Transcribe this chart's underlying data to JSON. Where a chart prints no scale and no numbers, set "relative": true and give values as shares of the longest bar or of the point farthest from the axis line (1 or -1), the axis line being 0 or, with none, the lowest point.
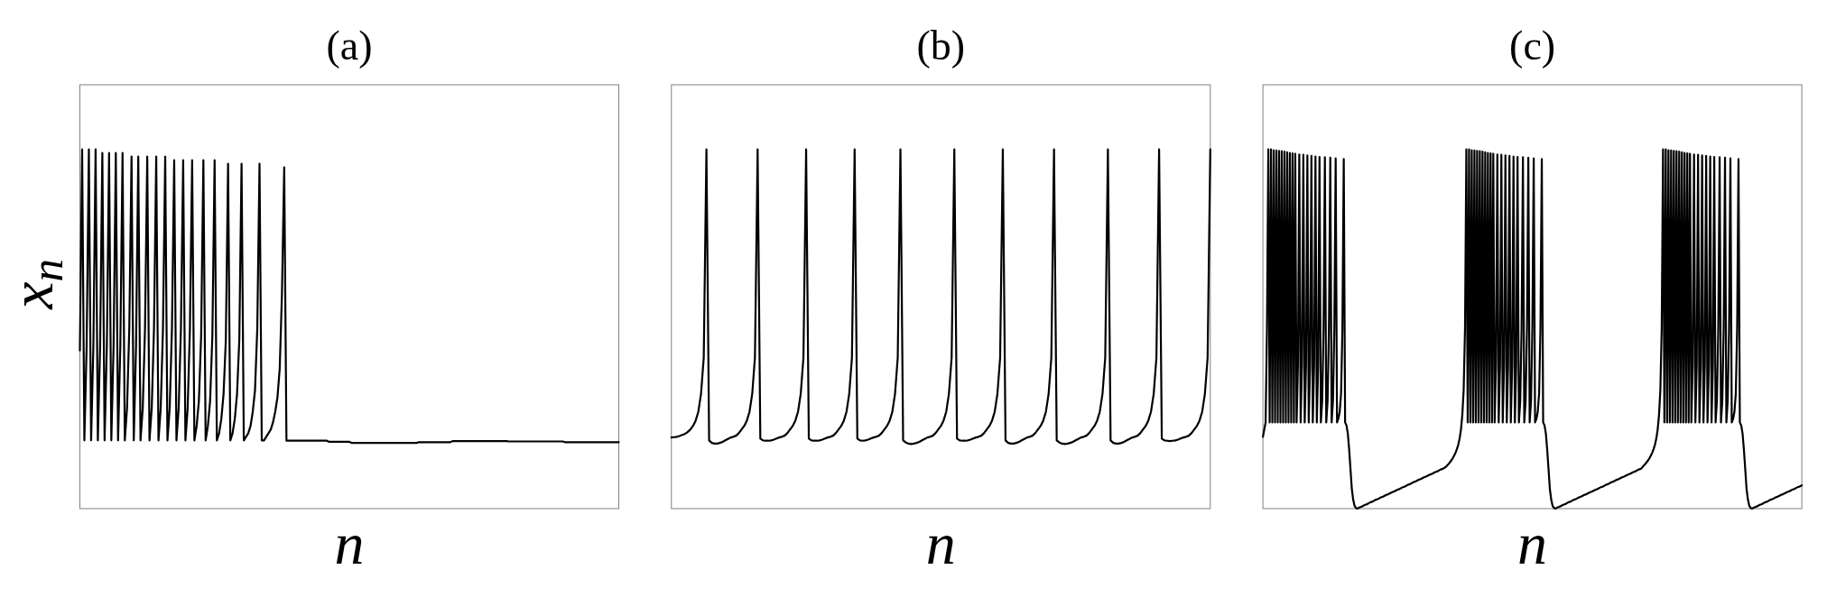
{
  "chart_data": [
    {
      "type": "line",
      "title": "(a)",
      "xlabel": "n",
      "ylabel": "x$_{n}$",
      "relative": true,
      "color": "#000000",
      "categories": [
        null,
        null,
        null,
        null,
        null,
        null,
        null,
        null,
        null,
        null,
        null,
        null,
        null,
        null,
        null,
        null,
        null,
        null,
        null,
        null,
        null,
        null,
        null,
        null,
        null,
        null,
        null,
        null,
        null,
        null,
        null,
        null,
        null,
        null,
        null,
        null,
        null,
        null,
        null,
        null,
        null,
        null,
        null,
        null,
        null,
        null,
        null,
        null,
        null,
        null,
        null,
        null,
        null,
        null,
        null,
        null,
        null,
        null,
        null,
        null,
        null,
        null,
        null,
        null,
        null,
        null,
        null,
        null,
        null,
        null,
        null,
        null,
        null,
        null,
        null,
        null,
        null,
        null,
        null,
        null,
        null,
        null,
        null,
        null,
        null,
        null,
        null,
        null,
        null,
        null,
        null,
        null,
        null,
        null,
        null,
        null,
        null,
        null,
        null,
        null,
        null,
        null,
        null,
        null,
        null,
        null,
        null,
        null,
        null,
        null,
        null,
        null,
        null,
        null,
        null,
        null,
        null,
        null,
        null,
        null,
        null,
        null,
        null,
        null,
        null,
        null,
        null,
        null,
        null,
        null,
        null,
        null,
        null,
        null,
        null,
        null,
        null,
        null,
        null,
        null,
        null,
        null,
        null,
        null,
        null,
        null,
        null,
        null,
        null,
        null,
        null,
        null,
        null,
        null,
        null,
        null,
        null,
        null,
        null,
        null,
        null,
        null,
        null,
        null,
        null,
        null,
        null,
        null,
        null,
        null,
        null,
        null,
        null,
        null,
        null,
        null,
        null,
        null,
        null,
        null,
        null,
        null,
        null,
        null,
        null,
        null,
        null,
        null,
        null,
        null,
        null,
        null,
        null,
        null,
        null,
        null,
        null,
        null,
        null,
        null,
        null,
        null,
        null,
        null,
        null,
        null,
        null,
        null,
        null,
        null,
        null,
        null,
        null,
        null,
        null,
        null,
        null,
        null,
        null,
        null,
        null,
        null,
        null,
        null,
        null,
        null,
        null,
        null,
        null,
        null,
        null,
        null,
        null,
        null,
        null,
        null,
        null,
        null,
        null,
        null,
        null
      ],
      "values": [
        0.44,
        1,
        0.19,
        0.45,
        1,
        0.19,
        0.45,
        1,
        0.19,
        0.45,
        0.99,
        0.19,
        0.45,
        0.99,
        0.19,
        0.45,
        0.99,
        0.19,
        0.45,
        0.99,
        0.19,
        0.28,
        0.5,
        0.98,
        0.19,
        0.45,
        0.98,
        0.19,
        0.28,
        0.5,
        0.98,
        0.19,
        0.28,
        0.5,
        0.98,
        0.19,
        0.28,
        0.5,
        0.98,
        0.19,
        0.28,
        0.5,
        0.97,
        0.19,
        0.28,
        0.5,
        0.97,
        0.19,
        0.28,
        0.5,
        0.97,
        0.19,
        0.23,
        0.3,
        0.48,
        0.97,
        0.19,
        0.23,
        0.3,
        0.48,
        0.97,
        0.19,
        0.21,
        0.25,
        0.32,
        0.47,
        0.96,
        0.19,
        0.21,
        0.25,
        0.32,
        0.47,
        0.96,
        0.19,
        0.2,
        0.21,
        0.23,
        0.27,
        0.33,
        0.5,
        0.96,
        0.19,
        0.19,
        0.2,
        0.21,
        0.22,
        0.24,
        0.27,
        0.31,
        0.39,
        0.6,
        0.95,
        0.189,
        0.189,
        0.189,
        0.189,
        0.189,
        0.189,
        0.189,
        0.189,
        0.189,
        0.189,
        0.189,
        0.189,
        0.189,
        0.189,
        0.189,
        0.189,
        0.189,
        0.189,
        0.189,
        0.186,
        0.186,
        0.186,
        0.186,
        0.186,
        0.186,
        0.186,
        0.186,
        0.186,
        0.186,
        0.183,
        0.183,
        0.183,
        0.183,
        0.183,
        0.183,
        0.183,
        0.183,
        0.183,
        0.183,
        0.183,
        0.183,
        0.183,
        0.183,
        0.183,
        0.183,
        0.183,
        0.183,
        0.183,
        0.183,
        0.183,
        0.183,
        0.183,
        0.183,
        0.183,
        0.183,
        0.183,
        0.183,
        0.183,
        0.183,
        0.185,
        0.185,
        0.185,
        0.185,
        0.185,
        0.185,
        0.185,
        0.185,
        0.185,
        0.185,
        0.185,
        0.185,
        0.185,
        0.185,
        0.185,
        0.188,
        0.188,
        0.188,
        0.188,
        0.188,
        0.188,
        0.188,
        0.188,
        0.188,
        0.188,
        0.188,
        0.188,
        0.188,
        0.188,
        0.188,
        0.188,
        0.188,
        0.188,
        0.188,
        0.188,
        0.188,
        0.188,
        0.188,
        0.188,
        0.188,
        0.187,
        0.187,
        0.187,
        0.187,
        0.187,
        0.187,
        0.187,
        0.187,
        0.187,
        0.187,
        0.187,
        0.187,
        0.187,
        0.187,
        0.187,
        0.187,
        0.187,
        0.187,
        0.187,
        0.187,
        0.187,
        0.187,
        0.187,
        0.187,
        0.187,
        0.185,
        0.185,
        0.185,
        0.185,
        0.185,
        0.185,
        0.185,
        0.185,
        0.185,
        0.185,
        0.185,
        0.185,
        0.185,
        0.185,
        0.185,
        0.185,
        0.185,
        0.185,
        0.185,
        0.185,
        0.185,
        0.185,
        0.185,
        0.185,
        0.185
      ]
    },
    {
      "type": "line",
      "title": "(b)",
      "xlabel": "n",
      "relative": true,
      "color": "#000000",
      "categories": [
        null,
        null,
        null,
        null,
        null,
        null,
        null,
        null,
        null,
        null,
        null,
        null,
        null,
        null,
        null,
        null,
        null,
        null,
        null,
        null,
        null,
        null,
        null,
        null,
        null,
        null,
        null,
        null,
        null,
        null,
        null,
        null,
        null,
        null,
        null,
        null,
        null,
        null,
        null,
        null,
        null,
        null,
        null,
        null,
        null,
        null,
        null,
        null,
        null,
        null,
        null,
        null,
        null,
        null,
        null,
        null,
        null,
        null,
        null,
        null,
        null,
        null,
        null,
        null,
        null,
        null,
        null,
        null,
        null,
        null,
        null,
        null,
        null,
        null,
        null,
        null,
        null,
        null,
        null,
        null,
        null,
        null,
        null,
        null,
        null,
        null,
        null,
        null,
        null,
        null,
        null,
        null,
        null,
        null,
        null,
        null,
        null,
        null,
        null,
        null,
        null,
        null,
        null,
        null,
        null,
        null,
        null,
        null,
        null,
        null,
        null,
        null,
        null,
        null,
        null,
        null,
        null,
        null,
        null,
        null,
        null,
        null,
        null,
        null,
        null,
        null,
        null,
        null,
        null,
        null,
        null,
        null,
        null,
        null,
        null,
        null,
        null,
        null,
        null,
        null,
        null,
        null,
        null,
        null,
        null,
        null,
        null,
        null,
        null,
        null,
        null,
        null,
        null,
        null,
        null,
        null,
        null,
        null,
        null,
        null,
        null,
        null,
        null,
        null,
        null,
        null,
        null,
        null,
        null,
        null,
        null,
        null,
        null,
        null,
        null,
        null,
        null,
        null,
        null,
        null,
        null,
        null,
        null,
        null,
        null,
        null,
        null,
        null,
        null,
        null,
        null,
        null,
        null,
        null,
        null,
        null,
        null,
        null,
        null,
        null,
        null
      ],
      "values": [
        0.198,
        0.199,
        0.2,
        0.202,
        0.205,
        0.208,
        0.213,
        0.22,
        0.23,
        0.245,
        0.27,
        0.32,
        0.42,
        1,
        0.19,
        0.183,
        0.181,
        0.181,
        0.183,
        0.186,
        0.19,
        0.194,
        0.198,
        0.2,
        0.203,
        0.21,
        0.22,
        0.23,
        0.245,
        0.27,
        0.32,
        0.42,
        1,
        0.195,
        0.19,
        0.189,
        0.189,
        0.19,
        0.192,
        0.195,
        0.198,
        0.2,
        0.203,
        0.21,
        0.22,
        0.23,
        0.245,
        0.27,
        0.32,
        0.42,
        1,
        0.195,
        0.19,
        0.189,
        0.189,
        0.19,
        0.192,
        0.195,
        0.198,
        0.2,
        0.203,
        0.21,
        0.22,
        0.23,
        0.245,
        0.27,
        0.32,
        0.42,
        1,
        0.195,
        0.19,
        0.189,
        0.19,
        0.192,
        0.195,
        0.198,
        0.2,
        0.203,
        0.21,
        0.22,
        0.23,
        0.245,
        0.27,
        0.32,
        0.42,
        1,
        0.19,
        0.184,
        0.181,
        0.18,
        0.181,
        0.183,
        0.186,
        0.19,
        0.194,
        0.198,
        0.2,
        0.203,
        0.21,
        0.22,
        0.23,
        0.245,
        0.27,
        0.32,
        0.42,
        1,
        0.195,
        0.19,
        0.189,
        0.189,
        0.19,
        0.192,
        0.195,
        0.198,
        0.2,
        0.203,
        0.21,
        0.22,
        0.23,
        0.245,
        0.27,
        0.32,
        0.42,
        1,
        0.19,
        0.183,
        0.181,
        0.181,
        0.183,
        0.186,
        0.19,
        0.194,
        0.198,
        0.2,
        0.203,
        0.21,
        0.22,
        0.23,
        0.245,
        0.27,
        0.32,
        0.42,
        1,
        0.19,
        0.184,
        0.181,
        0.18,
        0.181,
        0.183,
        0.186,
        0.19,
        0.194,
        0.198,
        0.2,
        0.203,
        0.21,
        0.22,
        0.23,
        0.245,
        0.27,
        0.32,
        0.42,
        1,
        0.19,
        0.183,
        0.181,
        0.181,
        0.183,
        0.186,
        0.19,
        0.194,
        0.198,
        0.2,
        0.203,
        0.21,
        0.22,
        0.23,
        0.245,
        0.27,
        0.32,
        0.42,
        1,
        0.195,
        0.19,
        0.189,
        0.188,
        0.189,
        0.19,
        0.192,
        0.195,
        0.198,
        0.2,
        0.203,
        0.21,
        0.22,
        0.23,
        0.245,
        0.27,
        0.32,
        0.42,
        1
      ]
    },
    {
      "type": "line",
      "title": "(c)",
      "xlabel": "n",
      "relative": true,
      "color": "#000000",
      "categories": [
        null,
        null,
        null,
        null,
        null,
        null,
        null,
        null,
        null,
        null,
        null,
        null,
        null,
        null,
        null,
        null,
        null,
        null,
        null,
        null,
        null,
        null,
        null,
        null,
        null,
        null,
        null,
        null,
        null,
        null,
        null,
        null,
        null,
        null,
        null,
        null,
        null,
        null,
        null,
        null,
        null,
        null,
        null,
        null,
        null,
        null,
        null,
        null,
        null,
        null,
        null,
        null,
        null,
        null,
        null,
        null,
        null,
        null,
        null,
        null,
        null,
        null,
        null,
        null,
        null,
        null,
        null,
        null,
        null,
        null,
        null,
        null,
        null,
        null,
        null,
        null,
        null,
        null,
        null,
        null,
        null,
        null,
        null,
        null,
        null,
        null,
        null,
        null,
        null,
        null,
        null,
        null,
        null,
        null,
        null,
        null,
        null,
        null,
        null,
        null,
        null,
        null,
        null,
        null,
        null,
        null,
        null,
        null,
        null,
        null,
        null,
        null,
        null,
        null,
        null,
        null,
        null,
        null,
        null,
        null,
        null,
        null,
        null,
        null,
        null,
        null,
        null,
        null,
        null,
        null,
        null,
        null,
        null,
        null,
        null,
        null,
        null,
        null,
        null,
        null,
        null,
        null,
        null,
        null,
        null,
        null,
        null,
        null,
        null,
        null,
        null,
        null,
        null,
        null,
        null,
        null,
        null,
        null,
        null,
        null,
        null,
        null,
        null,
        null,
        null,
        null,
        null,
        null,
        null,
        null,
        null,
        null,
        null,
        null,
        null,
        null,
        null,
        null,
        null,
        null,
        null,
        null,
        null,
        null,
        null,
        null,
        null,
        null,
        null,
        null,
        null,
        null,
        null,
        null,
        null,
        null,
        null,
        null,
        null,
        null,
        null,
        null,
        null,
        null,
        null,
        null,
        null,
        null,
        null,
        null,
        null,
        null,
        null,
        null,
        null,
        null,
        null,
        null,
        null,
        null,
        null,
        null,
        null,
        null,
        null,
        null,
        null,
        null,
        null,
        null,
        null,
        null,
        null,
        null,
        null,
        null,
        null,
        null,
        null,
        null,
        null,
        null,
        null,
        null,
        null,
        null,
        null,
        null,
        null,
        null,
        null,
        null,
        null,
        null,
        null,
        null,
        null,
        null,
        null,
        null,
        null,
        null,
        null,
        null,
        null,
        null,
        null,
        null,
        null,
        null,
        null,
        null,
        null,
        null,
        null,
        null,
        null,
        null,
        null,
        null,
        null,
        null,
        null,
        null,
        null,
        null,
        null,
        null,
        null,
        null,
        null,
        null,
        null,
        null,
        null,
        null,
        null,
        null,
        null,
        null,
        null,
        null,
        null,
        null,
        null,
        null,
        null,
        null,
        null,
        null,
        null,
        null,
        null,
        null,
        null,
        null,
        null,
        null,
        null,
        null,
        null,
        null,
        null,
        null,
        null,
        null,
        null,
        null,
        null,
        null,
        null,
        null,
        null,
        null,
        null,
        null,
        null,
        null,
        null,
        null,
        null,
        null,
        null,
        null,
        null,
        null,
        null,
        null,
        null,
        null,
        null,
        null,
        null,
        null,
        null,
        null,
        null,
        null,
        null,
        null,
        null,
        null,
        null,
        null,
        null,
        null,
        null,
        null,
        null,
        null,
        null,
        null,
        null,
        null,
        null,
        null,
        null,
        null,
        null,
        null,
        null,
        null,
        null,
        null,
        null,
        null,
        null,
        null,
        null,
        null,
        null,
        null,
        null,
        null,
        null,
        null,
        null,
        null,
        null,
        null,
        null
      ],
      "values": [
        0.2,
        0.22,
        0.24,
        0.5,
        1,
        0.24,
        1,
        0.24,
        0.998,
        0.24,
        0.997,
        0.24,
        0.996,
        0.24,
        0.995,
        0.24,
        0.994,
        0.24,
        0.992,
        0.24,
        0.99,
        0.24,
        0.989,
        0.24,
        0.988,
        0.24,
        0.4,
        0.986,
        0.24,
        0.4,
        0.985,
        0.24,
        0.4,
        0.983,
        0.24,
        0.4,
        0.982,
        0.24,
        0.4,
        0.98,
        0.24,
        0.4,
        0.979,
        0.24,
        0.3,
        0.5,
        0.978,
        0.24,
        0.3,
        0.5,
        0.977,
        0.24,
        0.3,
        0.5,
        0.975,
        0.24,
        0.25,
        0.27,
        0.32,
        0.5,
        0.973,
        0.24,
        0.232,
        0.21,
        0.165,
        0.11,
        0.054,
        0.025,
        0.008,
        0.002,
        0,
        0.002,
        0.004,
        0.005,
        0.007,
        0.009,
        0.011,
        0.012,
        0.014,
        0.016,
        0.018,
        0.019,
        0.021,
        0.023,
        0.025,
        0.026,
        0.028,
        0.03,
        0.032,
        0.033,
        0.035,
        0.037,
        0.039,
        0.04,
        0.042,
        0.044,
        0.046,
        0.047,
        0.049,
        0.051,
        0.053,
        0.054,
        0.056,
        0.058,
        0.06,
        0.061,
        0.063,
        0.065,
        0.067,
        0.068,
        0.07,
        0.072,
        0.074,
        0.075,
        0.077,
        0.079,
        0.081,
        0.082,
        0.084,
        0.086,
        0.088,
        0.089,
        0.091,
        0.093,
        0.095,
        0.096,
        0.098,
        0.1,
        0.102,
        0.103,
        0.105,
        0.107,
        0.109,
        0.11,
        0.112,
        0.114,
        0.117,
        0.121,
        0.125,
        0.13,
        0.135,
        0.141,
        0.148,
        0.156,
        0.166,
        0.178,
        0.195,
        0.22,
        0.26,
        0.33,
        0.5,
        1,
        0.24,
        1,
        0.24,
        0.998,
        0.24,
        0.997,
        0.24,
        0.996,
        0.24,
        0.995,
        0.24,
        0.994,
        0.24,
        0.992,
        0.24,
        0.99,
        0.24,
        0.989,
        0.24,
        0.988,
        0.24,
        0.4,
        0.986,
        0.24,
        0.4,
        0.985,
        0.24,
        0.4,
        0.983,
        0.24,
        0.4,
        0.982,
        0.24,
        0.4,
        0.98,
        0.24,
        0.4,
        0.979,
        0.24,
        0.3,
        0.5,
        0.978,
        0.24,
        0.3,
        0.5,
        0.977,
        0.24,
        0.3,
        0.5,
        0.975,
        0.24,
        0.25,
        0.27,
        0.32,
        0.5,
        0.973,
        0.24,
        0.232,
        0.21,
        0.165,
        0.11,
        0.054,
        0.025,
        0.008,
        0.002,
        0,
        0.002,
        0.004,
        0.005,
        0.007,
        0.009,
        0.011,
        0.012,
        0.014,
        0.016,
        0.018,
        0.019,
        0.021,
        0.023,
        0.025,
        0.026,
        0.028,
        0.03,
        0.032,
        0.033,
        0.035,
        0.037,
        0.039,
        0.04,
        0.042,
        0.044,
        0.046,
        0.047,
        0.049,
        0.051,
        0.053,
        0.054,
        0.056,
        0.058,
        0.06,
        0.061,
        0.063,
        0.065,
        0.067,
        0.068,
        0.07,
        0.072,
        0.074,
        0.075,
        0.077,
        0.079,
        0.081,
        0.082,
        0.084,
        0.086,
        0.088,
        0.089,
        0.091,
        0.093,
        0.095,
        0.096,
        0.098,
        0.1,
        0.102,
        0.103,
        0.105,
        0.107,
        0.109,
        0.11,
        0.112,
        0.117,
        0.121,
        0.125,
        0.13,
        0.135,
        0.141,
        0.148,
        0.156,
        0.166,
        0.178,
        0.195,
        0.22,
        0.26,
        0.33,
        0.5,
        1,
        0.24,
        1,
        0.24,
        0.998,
        0.24,
        0.997,
        0.24,
        0.996,
        0.24,
        0.995,
        0.24,
        0.994,
        0.24,
        0.992,
        0.24,
        0.99,
        0.24,
        0.989,
        0.24,
        0.988,
        0.24,
        0.4,
        0.986,
        0.24,
        0.4,
        0.985,
        0.24,
        0.4,
        0.983,
        0.24,
        0.4,
        0.982,
        0.24,
        0.4,
        0.98,
        0.24,
        0.4,
        0.979,
        0.24,
        0.3,
        0.5,
        0.978,
        0.24,
        0.3,
        0.5,
        0.977,
        0.24,
        0.3,
        0.5,
        0.975,
        0.24,
        0.25,
        0.27,
        0.32,
        0.5,
        0.973,
        0.24,
        0.232,
        0.21,
        0.165,
        0.11,
        0.054,
        0.025,
        0.008,
        0.002,
        0,
        0.002,
        0.004,
        0.005,
        0.007,
        0.009,
        0.011,
        0.012,
        0.014,
        0.016,
        0.018,
        0.019,
        0.021,
        0.023,
        0.025,
        0.026,
        0.028,
        0.03,
        0.032,
        0.033,
        0.035,
        0.037,
        0.039,
        0.04,
        0.042,
        0.044,
        0.046,
        0.047,
        0.049,
        0.051,
        0.053,
        0.054,
        0.056,
        0.058,
        0.06,
        0.061,
        0.063,
        0.065
      ]
    }
  ]
}
